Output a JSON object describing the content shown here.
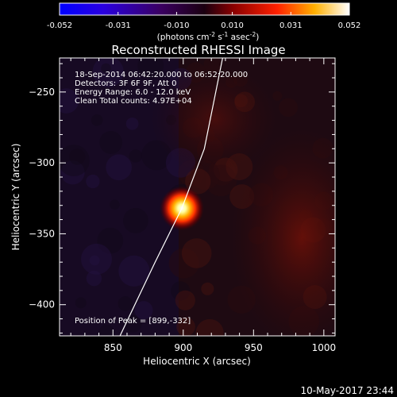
{
  "colorbar": {
    "tick_labels": [
      "-0.052",
      "-0.031",
      "-0.010",
      "0.010",
      "0.031",
      "0.052"
    ],
    "tick_values": [
      -0.052,
      -0.031,
      -0.01,
      0.01,
      0.031,
      0.052
    ],
    "range": [
      -0.052,
      0.052
    ],
    "units_prefix": "(photons cm",
    "units_sup1": "-2",
    "units_mid1": " s",
    "units_sup2": "-1",
    "units_mid2": " asec",
    "units_sup3": "-2",
    "units_suffix": ")"
  },
  "annotations": {
    "time": "18-Sep-2014 06:42:20.000 to 06:52:20.000",
    "detectors": "Detectors: 3F 6F 9F, Att 0",
    "energy": "Energy Range: 6.0 - 12.0 keV",
    "clean": "Clean    Total counts: 4.97E+04",
    "peak": "Position of Peak = [899,-332]"
  },
  "footer_date": "10-May-2017 23:44",
  "chart_data": {
    "type": "heatmap",
    "title": "Reconstructed RHESSI Image",
    "xlabel": "Heliocentric X (arcsec)",
    "ylabel": "Heliocentric Y (arcsec)",
    "xlim": [
      812,
      1008
    ],
    "ylim": [
      -422,
      -226
    ],
    "xticks": [
      850,
      900,
      950,
      1000
    ],
    "xtick_labels": [
      "850",
      "900",
      "950",
      "1000"
    ],
    "yticks": [
      -250,
      -300,
      -350,
      -400
    ],
    "ytick_labels": [
      "−250",
      "−300",
      "−350",
      "−400"
    ],
    "peak": {
      "x": 899,
      "y": -332,
      "value": 0.052
    },
    "limb_curve": [
      [
        855,
        -422
      ],
      [
        880,
        -370
      ],
      [
        899,
        -332
      ],
      [
        915,
        -290
      ],
      [
        928,
        -226
      ]
    ],
    "colormap": [
      "#0000ff",
      "#3300cc",
      "#1a0033",
      "#000000",
      "#7f0000",
      "#ff0000",
      "#ff8000",
      "#ffff00",
      "#ffffff"
    ]
  }
}
